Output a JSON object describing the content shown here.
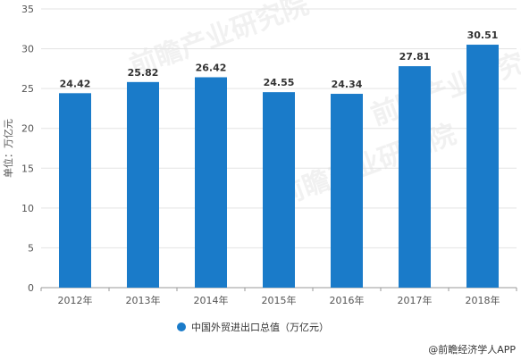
{
  "chart_data": {
    "type": "bar",
    "categories": [
      "2012年",
      "2013年",
      "2014年",
      "2015年",
      "2016年",
      "2017年",
      "2018年"
    ],
    "series": [
      {
        "name": "中国外贸进出口总值（万亿元）",
        "values": [
          24.42,
          25.82,
          26.42,
          24.55,
          24.34,
          27.81,
          30.51
        ]
      }
    ],
    "data_labels": [
      "24.42",
      "25.82",
      "26.42",
      "24.55",
      "24.34",
      "27.81",
      "30.51"
    ],
    "ylabel": "单位：万亿元",
    "ylim": [
      0,
      35
    ],
    "yticks": [
      0,
      5,
      10,
      15,
      20,
      25,
      30,
      35
    ],
    "grid": true,
    "legend_position": "bottom",
    "bar_color": "#1a7bc9"
  },
  "watermark_text": "前瞻产业研究院",
  "credit": {
    "icon": "at-icon",
    "text": "@前瞻经济学人APP"
  }
}
